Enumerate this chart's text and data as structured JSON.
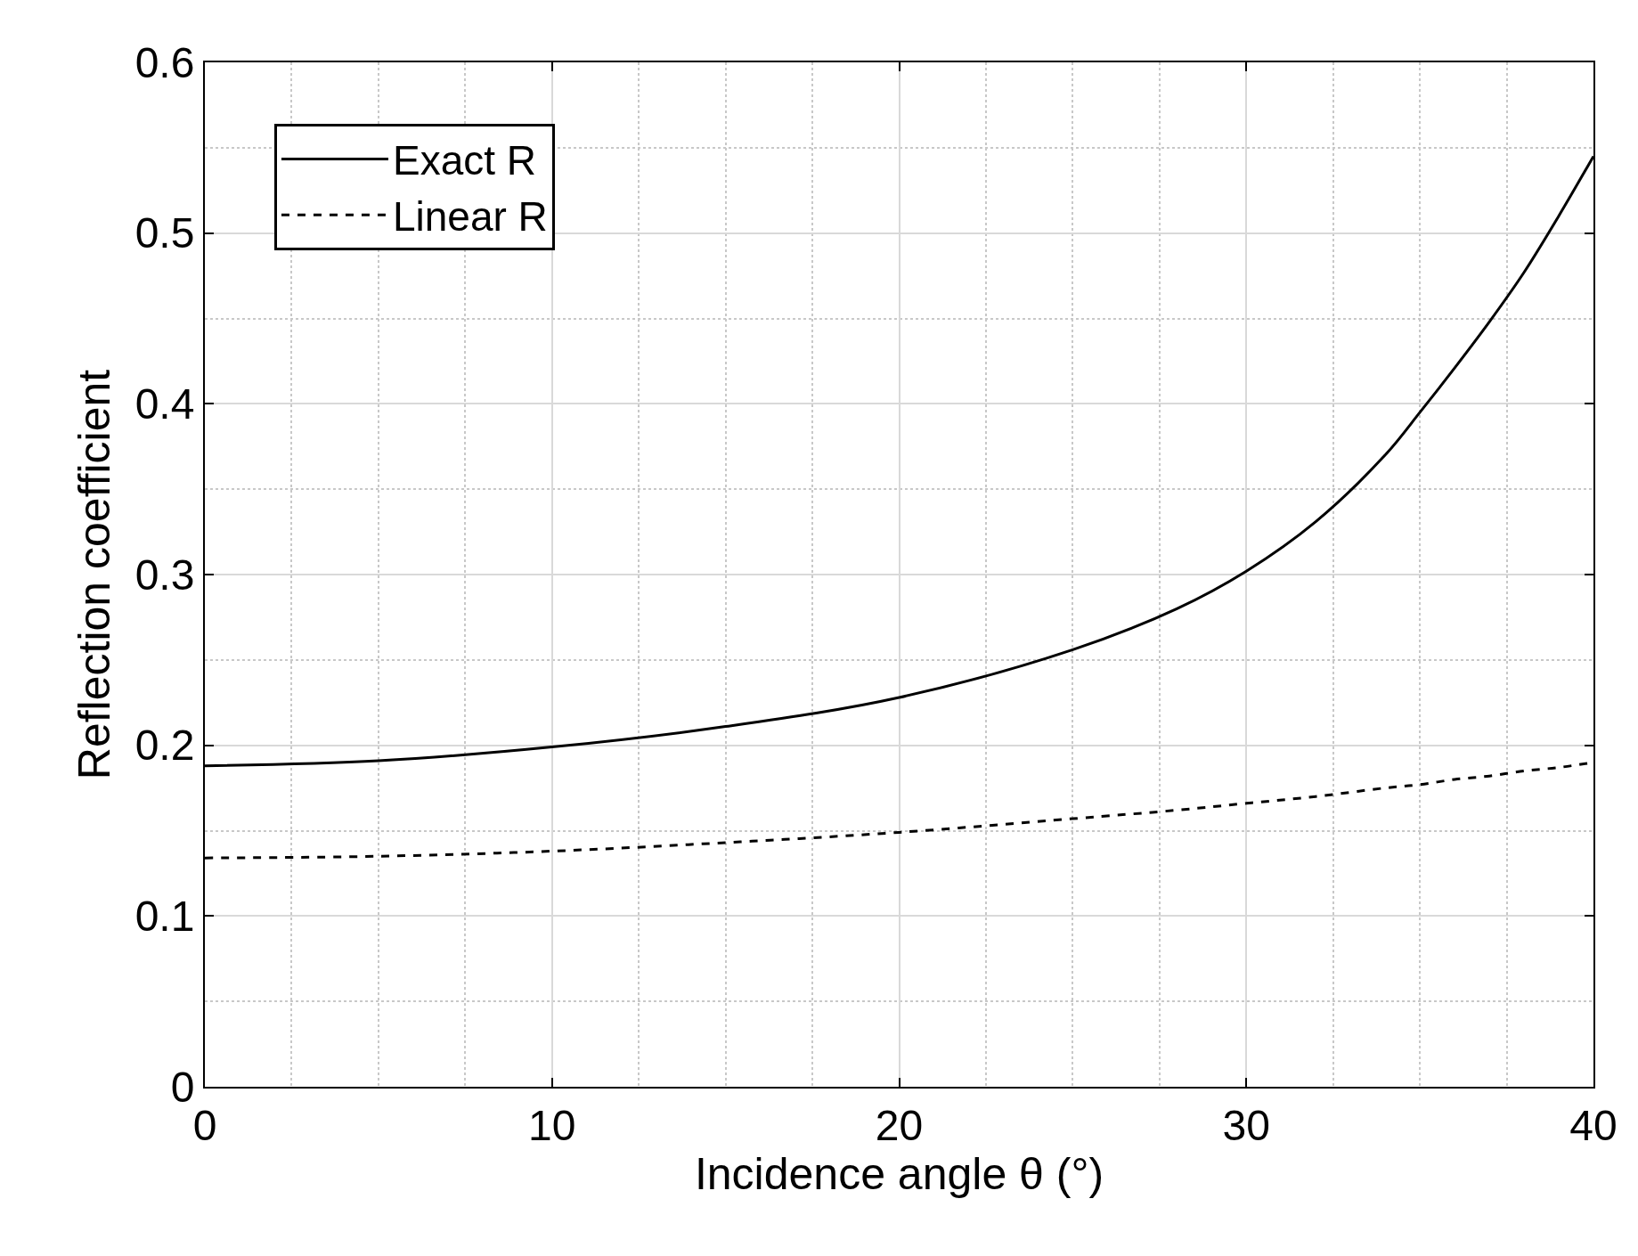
{
  "chart_data": {
    "type": "line",
    "xlabel": "Incidence angle θ (°)",
    "ylabel": "Reflection coefficient",
    "x": [
      0,
      5,
      10,
      15,
      20,
      25,
      28,
      30,
      32,
      34,
      35,
      36,
      37,
      38,
      39,
      40
    ],
    "series": [
      {
        "name": "Exact R",
        "color": "#000000",
        "line_style": "solid",
        "values": [
          0.188,
          0.191,
          0.199,
          0.211,
          0.228,
          0.256,
          0.28,
          0.302,
          0.331,
          0.37,
          0.395,
          0.421,
          0.448,
          0.477,
          0.51,
          0.545
        ]
      },
      {
        "name": "Linear R",
        "color": "#000000",
        "line_style": "dashed",
        "values": [
          0.134,
          0.135,
          0.138,
          0.143,
          0.149,
          0.157,
          0.162,
          0.166,
          0.17,
          0.175,
          0.177,
          0.18,
          0.182,
          0.185,
          0.187,
          0.19
        ]
      }
    ],
    "xlim": [
      0,
      40
    ],
    "xticks": [
      0,
      10,
      20,
      30,
      40
    ],
    "ylim": [
      0,
      0.6
    ],
    "yticks": [
      0,
      0.1,
      0.2,
      0.3,
      0.4,
      0.5,
      0.6
    ],
    "grid": true,
    "legend": "top left",
    "marker": "none"
  }
}
